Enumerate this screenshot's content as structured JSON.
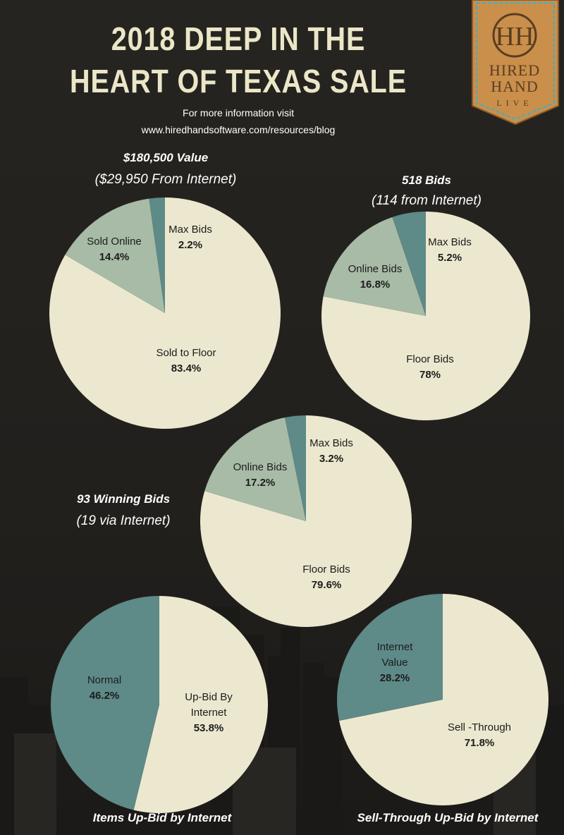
{
  "header": {
    "title_line1": "2018 DEEP IN THE",
    "title_line2": "HEART OF TEXAS SALE",
    "info_line1": "For more information visit",
    "info_line2": "www.hiredhandsoftware.com/resources/blog"
  },
  "logo": {
    "monogram": "HH",
    "word1": "HIRED",
    "word2": "HAND",
    "word3": "LIVE"
  },
  "colors": {
    "cream": "#ece8cf",
    "sage": "#a7bba6",
    "teal": "#5e8a87",
    "background": "#23211e",
    "title": "#ece6c8",
    "logo_leather": "#d09b56",
    "logo_stitch": "#3bb0c8"
  },
  "captions": {
    "value_title": "$180,500 Value",
    "value_sub": "($29,950 From Internet)",
    "bids_title": "518 Bids",
    "bids_sub": "(114 from Internet)",
    "winning_title": "93 Winning Bids",
    "winning_sub": "(19 via Internet)",
    "upbid_title": "Items Up-Bid by Internet",
    "sellthrough_title": "Sell-Through Up-Bid by Internet"
  },
  "chart_data": [
    {
      "type": "pie",
      "title": "$180,500 Value",
      "subtitle": "($29,950 From Internet)",
      "slices": [
        {
          "label": "Sold to Floor",
          "value": 83.4,
          "display": "83.4%",
          "color": "#ece8cf"
        },
        {
          "label": "Sold Online",
          "value": 14.4,
          "display": "14.4%",
          "color": "#a7bba6"
        },
        {
          "label": "Max Bids",
          "value": 2.2,
          "display": "2.2%",
          "color": "#5e8a87"
        }
      ]
    },
    {
      "type": "pie",
      "title": "518 Bids",
      "subtitle": "(114 from Internet)",
      "slices": [
        {
          "label": "Floor Bids",
          "value": 78,
          "display": "78%",
          "color": "#ece8cf"
        },
        {
          "label": "Online Bids",
          "value": 16.8,
          "display": "16.8%",
          "color": "#a7bba6"
        },
        {
          "label": "Max Bids",
          "value": 5.2,
          "display": "5.2%",
          "color": "#5e8a87"
        }
      ]
    },
    {
      "type": "pie",
      "title": "93 Winning Bids",
      "subtitle": "(19 via Internet)",
      "slices": [
        {
          "label": "Floor Bids",
          "value": 79.6,
          "display": "79.6%",
          "color": "#ece8cf"
        },
        {
          "label": "Online Bids",
          "value": 17.2,
          "display": "17.2%",
          "color": "#a7bba6"
        },
        {
          "label": "Max Bids",
          "value": 3.2,
          "display": "3.2%",
          "color": "#5e8a87"
        }
      ]
    },
    {
      "type": "pie",
      "title": "Items Up-Bid by Internet",
      "slices": [
        {
          "label": "Up-Bid By Internet",
          "value": 53.8,
          "display": "53.8%",
          "color": "#ece8cf"
        },
        {
          "label": "Normal",
          "value": 46.2,
          "display": "46.2%",
          "color": "#5e8a87"
        }
      ]
    },
    {
      "type": "pie",
      "title": "Sell-Through Up-Bid by Internet",
      "slices": [
        {
          "label": "Sell -Through",
          "value": 71.8,
          "display": "71.8%",
          "color": "#ece8cf"
        },
        {
          "label": "Internet Value",
          "value": 28.2,
          "display": "28.2%",
          "color": "#5e8a87"
        }
      ]
    }
  ]
}
